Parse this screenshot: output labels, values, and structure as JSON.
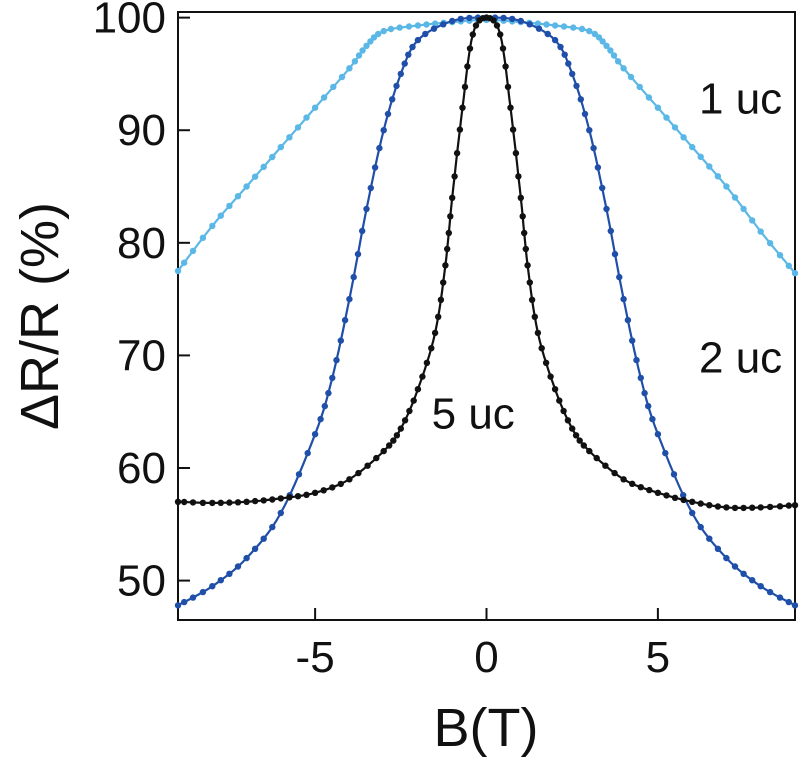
{
  "chart_data": {
    "type": "line",
    "xlabel": "B(T)",
    "ylabel": "ΔR/R (%)",
    "xlim": [
      -9,
      9
    ],
    "ylim": [
      46.5,
      100.5
    ],
    "xticks": [
      -5,
      0,
      5
    ],
    "xtick_labels": [
      "-5",
      "0",
      "5"
    ],
    "yticks": [
      50,
      60,
      70,
      80,
      90,
      100
    ],
    "ytick_labels": [
      "50",
      "60",
      "70",
      "80",
      "90",
      "100"
    ],
    "grid": false,
    "series": [
      {
        "name": "1 uc",
        "color": "#5bb8e6",
        "x": [
          -9,
          -8,
          -7,
          -6,
          -5,
          -4,
          -3.5,
          -3,
          -2,
          -1,
          0,
          1,
          2,
          3,
          3.5,
          4,
          5,
          6,
          7,
          8,
          9
        ],
        "values": [
          77.5,
          81.5,
          85,
          88.5,
          92,
          95.5,
          97.5,
          98.8,
          99.3,
          99.6,
          99.8,
          99.6,
          99.3,
          98.8,
          97.5,
          95.5,
          92,
          88.5,
          85,
          81,
          77.3
        ]
      },
      {
        "name": "2 uc",
        "color": "#1f4fa8",
        "x": [
          -9,
          -8,
          -7,
          -6,
          -5,
          -4.5,
          -4,
          -3.5,
          -3,
          -2.5,
          -2,
          -1,
          0,
          1,
          2,
          2.5,
          3,
          3.5,
          4,
          4.5,
          5,
          6,
          7,
          8,
          9
        ],
        "values": [
          47.8,
          49.5,
          52,
          56,
          63,
          68,
          75,
          83,
          90,
          95,
          98,
          99.7,
          100,
          99.7,
          98,
          95,
          90,
          83,
          75,
          68,
          63,
          56,
          52,
          49.5,
          47.8
        ]
      },
      {
        "name": "5 uc",
        "color": "#111111",
        "x": [
          -9,
          -8,
          -7,
          -6,
          -5,
          -4,
          -3,
          -2.5,
          -2,
          -1.5,
          -1.2,
          -1,
          -0.7,
          -0.4,
          0,
          0.4,
          0.7,
          1,
          1.2,
          1.5,
          2,
          2.5,
          3,
          4,
          5,
          6,
          7,
          8,
          9
        ],
        "values": [
          57,
          56.9,
          57,
          57.3,
          57.8,
          59,
          61.5,
          63.5,
          67,
          72,
          78,
          84,
          92,
          98.5,
          100,
          98.5,
          92,
          84,
          78,
          72,
          67,
          63.5,
          61.5,
          59,
          57.8,
          57,
          56.5,
          56.5,
          56.7
        ]
      }
    ],
    "annotations": [
      {
        "text": "1 uc",
        "x": 6.2,
        "y": 91.5
      },
      {
        "text": "2 uc",
        "x": 6.2,
        "y": 68.5
      },
      {
        "text": "5 uc",
        "x": -1.6,
        "y": 63.5
      }
    ]
  }
}
